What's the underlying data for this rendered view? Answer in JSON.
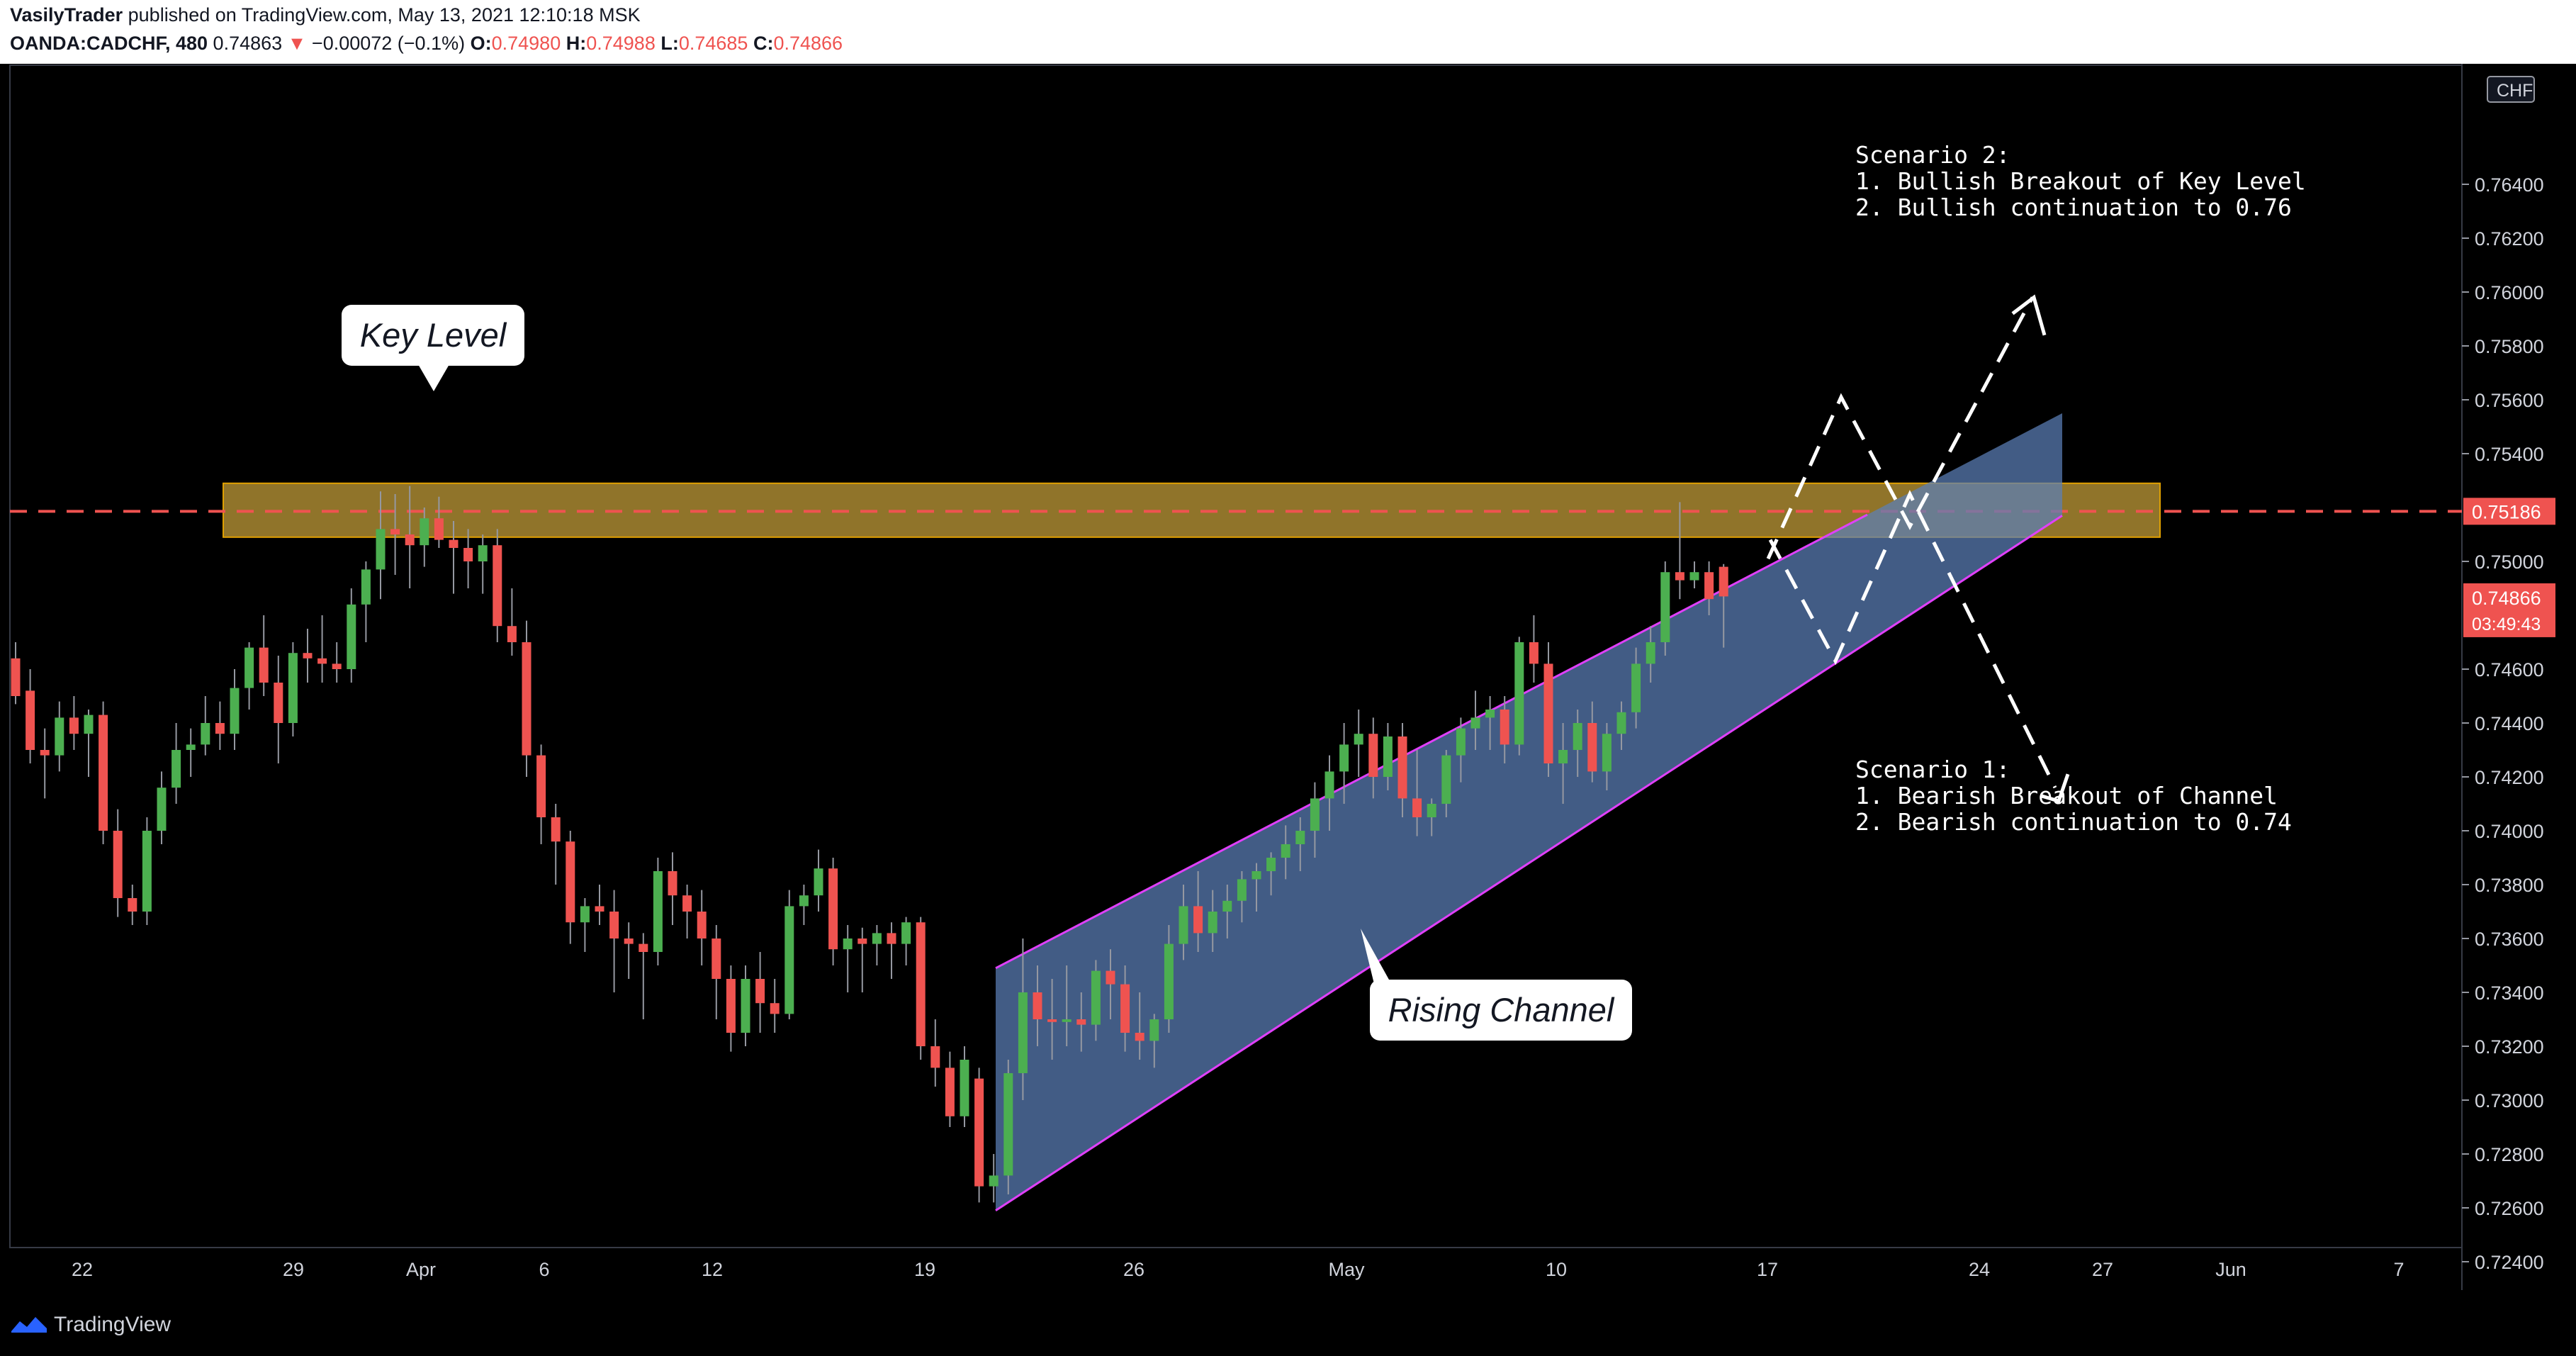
{
  "header": {
    "author": "VasilyTrader",
    "published": "published on TradingView.com, May 13, 2021 12:10:18 MSK",
    "symbol": "OANDA:CADCHF, 480",
    "last": "0.74863",
    "arrow": "▼",
    "change": "−0.00072 (−0.1%)",
    "o_label": "O:",
    "o_value": "0.74980",
    "h_label": "H:",
    "h_value": "0.74988",
    "l_label": "L:",
    "l_value": "0.74685",
    "c_label": "C:",
    "c_value": "0.74866"
  },
  "footer": {
    "brand": "TradingView"
  },
  "annotations": {
    "key_level": "Key Level",
    "rising_channel": "Rising Channel",
    "scenario2": "Scenario 2:\n1. Bullish Breakout of Key Level\n2. Bullish continuation to 0.76",
    "scenario1": "Scenario 1:\n1. Bearish Breakout of Channel\n2. Bearish continuation to 0.74"
  },
  "chart_data": {
    "type": "candlestick",
    "symbol": "OANDA:CADCHF",
    "interval": "480",
    "currency_badge": "CHF",
    "ylim": [
      0.7222,
      0.766
    ],
    "y_ticks": [
      "0.76400",
      "0.76200",
      "0.76000",
      "0.75800",
      "0.75600",
      "0.75400",
      "0.75000",
      "0.74600",
      "0.74400",
      "0.74200",
      "0.74000",
      "0.73800",
      "0.73600",
      "0.73400",
      "0.73200",
      "0.73000",
      "0.72800",
      "0.72600",
      "0.72400"
    ],
    "x_ticks": [
      "22",
      "29",
      "Apr",
      "6",
      "12",
      "19",
      "26",
      "May",
      "10",
      "17",
      "24",
      "27",
      "Jun",
      "7"
    ],
    "key_level": {
      "price": 0.75186,
      "zone": [
        0.7509,
        0.7529
      ],
      "label": "0.75186"
    },
    "current_price": {
      "value": "0.74866",
      "countdown": "03:49:43"
    },
    "colors": {
      "up": "#4caf50",
      "down": "#ef5350",
      "key_zone": "#c8a13a",
      "channel": "#e040fb",
      "channel_fill": "#5b7fb8",
      "dashed_level": "#ef5350"
    },
    "candles": [
      [
        0.7464,
        0.747,
        0.7447,
        0.745
      ],
      [
        0.7452,
        0.746,
        0.7425,
        0.743
      ],
      [
        0.743,
        0.7438,
        0.7412,
        0.7428
      ],
      [
        0.7428,
        0.7448,
        0.7422,
        0.7442
      ],
      [
        0.7442,
        0.745,
        0.743,
        0.7436
      ],
      [
        0.7436,
        0.7445,
        0.742,
        0.7443
      ],
      [
        0.7443,
        0.7448,
        0.7395,
        0.74
      ],
      [
        0.74,
        0.7408,
        0.7368,
        0.7375
      ],
      [
        0.7375,
        0.738,
        0.7365,
        0.737
      ],
      [
        0.737,
        0.7405,
        0.7365,
        0.74
      ],
      [
        0.74,
        0.7422,
        0.7395,
        0.7416
      ],
      [
        0.7416,
        0.744,
        0.741,
        0.743
      ],
      [
        0.743,
        0.7438,
        0.742,
        0.7432
      ],
      [
        0.7432,
        0.745,
        0.7428,
        0.744
      ],
      [
        0.744,
        0.7448,
        0.743,
        0.7436
      ],
      [
        0.7436,
        0.746,
        0.743,
        0.7453
      ],
      [
        0.7453,
        0.747,
        0.7445,
        0.7468
      ],
      [
        0.7468,
        0.748,
        0.745,
        0.7455
      ],
      [
        0.7455,
        0.7465,
        0.7425,
        0.744
      ],
      [
        0.744,
        0.747,
        0.7435,
        0.7466
      ],
      [
        0.7466,
        0.7475,
        0.7455,
        0.7464
      ],
      [
        0.7464,
        0.748,
        0.7455,
        0.7462
      ],
      [
        0.7462,
        0.747,
        0.7455,
        0.746
      ],
      [
        0.746,
        0.749,
        0.7455,
        0.7484
      ],
      [
        0.7484,
        0.75,
        0.747,
        0.7497
      ],
      [
        0.7497,
        0.7526,
        0.7486,
        0.7512
      ],
      [
        0.7512,
        0.7525,
        0.7495,
        0.751
      ],
      [
        0.751,
        0.7528,
        0.749,
        0.7506
      ],
      [
        0.7506,
        0.752,
        0.7498,
        0.7516
      ],
      [
        0.7516,
        0.7524,
        0.7505,
        0.7508
      ],
      [
        0.7508,
        0.7515,
        0.7488,
        0.7505
      ],
      [
        0.7505,
        0.7512,
        0.749,
        0.75
      ],
      [
        0.75,
        0.751,
        0.7488,
        0.7506
      ],
      [
        0.7506,
        0.7512,
        0.747,
        0.7476
      ],
      [
        0.7476,
        0.749,
        0.7465,
        0.747
      ],
      [
        0.747,
        0.7478,
        0.742,
        0.7428
      ],
      [
        0.7428,
        0.7432,
        0.7395,
        0.7405
      ],
      [
        0.7405,
        0.741,
        0.738,
        0.7396
      ],
      [
        0.7396,
        0.74,
        0.7358,
        0.7366
      ],
      [
        0.7366,
        0.7375,
        0.7355,
        0.7372
      ],
      [
        0.7372,
        0.738,
        0.7365,
        0.737
      ],
      [
        0.737,
        0.7378,
        0.734,
        0.736
      ],
      [
        0.736,
        0.7366,
        0.7345,
        0.7358
      ],
      [
        0.7358,
        0.7362,
        0.733,
        0.7355
      ],
      [
        0.7355,
        0.739,
        0.735,
        0.7385
      ],
      [
        0.7385,
        0.7392,
        0.7365,
        0.7376
      ],
      [
        0.7376,
        0.738,
        0.736,
        0.737
      ],
      [
        0.737,
        0.7378,
        0.735,
        0.736
      ],
      [
        0.736,
        0.7365,
        0.733,
        0.7345
      ],
      [
        0.7345,
        0.735,
        0.7318,
        0.7325
      ],
      [
        0.7325,
        0.735,
        0.732,
        0.7345
      ],
      [
        0.7345,
        0.7355,
        0.7325,
        0.7336
      ],
      [
        0.7336,
        0.7345,
        0.7325,
        0.7332
      ],
      [
        0.7332,
        0.7378,
        0.733,
        0.7372
      ],
      [
        0.7372,
        0.738,
        0.7365,
        0.7376
      ],
      [
        0.7376,
        0.7393,
        0.737,
        0.7386
      ],
      [
        0.7386,
        0.739,
        0.735,
        0.7356
      ],
      [
        0.7356,
        0.7365,
        0.734,
        0.736
      ],
      [
        0.736,
        0.7364,
        0.734,
        0.7358
      ],
      [
        0.7358,
        0.7365,
        0.735,
        0.7362
      ],
      [
        0.7362,
        0.7366,
        0.7345,
        0.7358
      ],
      [
        0.7358,
        0.7368,
        0.735,
        0.7366
      ],
      [
        0.7366,
        0.7368,
        0.7315,
        0.732
      ],
      [
        0.732,
        0.733,
        0.7305,
        0.7312
      ],
      [
        0.7312,
        0.7318,
        0.729,
        0.7294
      ],
      [
        0.7294,
        0.732,
        0.729,
        0.7315
      ],
      [
        0.7308,
        0.7312,
        0.7262,
        0.7268
      ],
      [
        0.7268,
        0.728,
        0.7262,
        0.7272
      ],
      [
        0.7272,
        0.7315,
        0.7265,
        0.731
      ],
      [
        0.731,
        0.736,
        0.73,
        0.734
      ],
      [
        0.734,
        0.735,
        0.732,
        0.733
      ],
      [
        0.733,
        0.7345,
        0.7315,
        0.7329
      ],
      [
        0.7329,
        0.735,
        0.732,
        0.733
      ],
      [
        0.733,
        0.734,
        0.7318,
        0.7328
      ],
      [
        0.7328,
        0.7352,
        0.7322,
        0.7348
      ],
      [
        0.7348,
        0.7356,
        0.733,
        0.7343
      ],
      [
        0.7343,
        0.735,
        0.7318,
        0.7325
      ],
      [
        0.7325,
        0.734,
        0.7315,
        0.7322
      ],
      [
        0.7322,
        0.7332,
        0.7312,
        0.733
      ],
      [
        0.733,
        0.7365,
        0.7325,
        0.7358
      ],
      [
        0.7358,
        0.738,
        0.7352,
        0.7372
      ],
      [
        0.7372,
        0.7385,
        0.7355,
        0.7362
      ],
      [
        0.7362,
        0.7378,
        0.7355,
        0.737
      ],
      [
        0.737,
        0.738,
        0.736,
        0.7374
      ],
      [
        0.7374,
        0.7385,
        0.7366,
        0.7382
      ],
      [
        0.7382,
        0.7388,
        0.737,
        0.7385
      ],
      [
        0.7385,
        0.7392,
        0.7376,
        0.739
      ],
      [
        0.739,
        0.7402,
        0.7382,
        0.7395
      ],
      [
        0.7395,
        0.7405,
        0.7385,
        0.74
      ],
      [
        0.74,
        0.7418,
        0.739,
        0.7412
      ],
      [
        0.7412,
        0.7428,
        0.74,
        0.7422
      ],
      [
        0.7422,
        0.744,
        0.741,
        0.7432
      ],
      [
        0.7432,
        0.7445,
        0.742,
        0.7436
      ],
      [
        0.7436,
        0.7442,
        0.7412,
        0.742
      ],
      [
        0.742,
        0.744,
        0.7415,
        0.7435
      ],
      [
        0.7435,
        0.744,
        0.7405,
        0.7412
      ],
      [
        0.7412,
        0.743,
        0.7398,
        0.7405
      ],
      [
        0.7405,
        0.7412,
        0.7398,
        0.741
      ],
      [
        0.741,
        0.743,
        0.7405,
        0.7428
      ],
      [
        0.7428,
        0.7442,
        0.7418,
        0.7438
      ],
      [
        0.7438,
        0.7452,
        0.743,
        0.7442
      ],
      [
        0.7442,
        0.745,
        0.743,
        0.7445
      ],
      [
        0.7445,
        0.745,
        0.7425,
        0.7432
      ],
      [
        0.7432,
        0.7472,
        0.7428,
        0.747
      ],
      [
        0.747,
        0.748,
        0.7455,
        0.7462
      ],
      [
        0.7462,
        0.747,
        0.742,
        0.7425
      ],
      [
        0.7425,
        0.744,
        0.741,
        0.743
      ],
      [
        0.743,
        0.7445,
        0.742,
        0.744
      ],
      [
        0.744,
        0.7448,
        0.7418,
        0.7422
      ],
      [
        0.7422,
        0.744,
        0.7415,
        0.7436
      ],
      [
        0.7436,
        0.7448,
        0.743,
        0.7444
      ],
      [
        0.7444,
        0.7468,
        0.7438,
        0.7462
      ],
      [
        0.7462,
        0.7476,
        0.7455,
        0.747
      ],
      [
        0.747,
        0.75,
        0.7465,
        0.7496
      ],
      [
        0.7496,
        0.7522,
        0.7486,
        0.7493
      ],
      [
        0.7493,
        0.75,
        0.749,
        0.7496
      ],
      [
        0.7496,
        0.75,
        0.748,
        0.7486
      ],
      [
        0.7498,
        0.7499,
        0.7468,
        0.7487
      ]
    ],
    "channel": {
      "upper": [
        [
          0.7349,
          0.7589
        ],
        67,
        128
      ],
      "lower": [
        [
          0.7259,
          0.7552
        ],
        67,
        134
      ]
    }
  }
}
